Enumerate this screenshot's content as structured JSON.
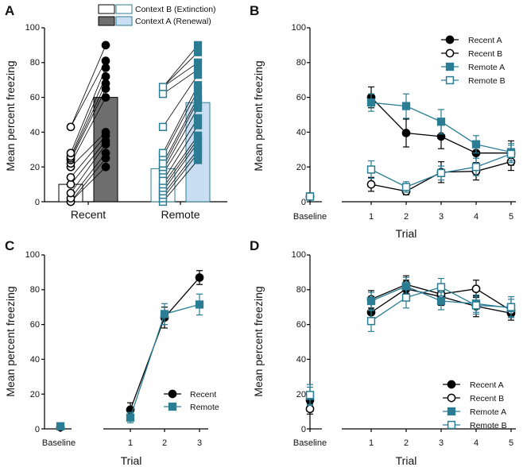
{
  "colors": {
    "black": "#000000",
    "teal": "#2b7d94",
    "gray_bar": "#6e6e6e",
    "light_bar": "#c9def2"
  },
  "chart_data": [
    {
      "panel": "A",
      "type": "bar",
      "ylabel": "Mean percent freezing",
      "ylim": [
        0,
        100
      ],
      "yticks": [
        0,
        20,
        40,
        60,
        80,
        100
      ],
      "categories": [
        "Recent",
        "Remote"
      ],
      "legend": [
        "Context B (Extinction)",
        "Context A (Renewal)"
      ],
      "series": [
        {
          "name": "Recent Context B",
          "mean": 10,
          "points": [
            0,
            0,
            2,
            5,
            10,
            14,
            20,
            22,
            24,
            25,
            26,
            28,
            43
          ]
        },
        {
          "name": "Recent Context A",
          "mean": 60,
          "points": [
            20,
            25,
            28,
            33,
            35,
            38,
            40,
            60,
            65,
            68,
            72,
            77,
            81,
            90
          ]
        },
        {
          "name": "Remote Context B",
          "mean": 19,
          "points": [
            0,
            2,
            4,
            6,
            8,
            10,
            12,
            16,
            18,
            20,
            22,
            26,
            28,
            43,
            62,
            66
          ]
        },
        {
          "name": "Remote Context A",
          "mean": 57,
          "points": [
            24,
            28,
            30,
            34,
            36,
            38,
            44,
            48,
            54,
            58,
            60,
            64,
            67,
            73,
            76,
            80,
            86,
            90
          ]
        }
      ]
    },
    {
      "panel": "B",
      "type": "line",
      "ylabel": "Mean percent freezing",
      "xlabel": "Trial",
      "ylim": [
        0,
        100
      ],
      "yticks": [
        0,
        20,
        40,
        60,
        80,
        100
      ],
      "x": [
        "Baseline",
        "1",
        "2",
        "3",
        "4",
        "5"
      ],
      "series": [
        {
          "name": "Recent A",
          "values": [
            3,
            60,
            39.5,
            37.5,
            28,
            28
          ],
          "errors": [
            2,
            6,
            8,
            7,
            7,
            7
          ]
        },
        {
          "name": "Recent B",
          "values": [
            3,
            10,
            6,
            17,
            17.5,
            23
          ],
          "errors": [
            2,
            4,
            2,
            6,
            5,
            5
          ]
        },
        {
          "name": "Remote A",
          "values": [
            3,
            57,
            55,
            46,
            33,
            28.5
          ],
          "errors": [
            2,
            5,
            7,
            7,
            5,
            5
          ]
        },
        {
          "name": "Remote B",
          "values": [
            3,
            18.5,
            8.5,
            16.5,
            20,
            27.5
          ],
          "errors": [
            2,
            5,
            3,
            4,
            5,
            5
          ]
        }
      ]
    },
    {
      "panel": "C",
      "type": "line",
      "ylabel": "Mean percent freezing",
      "xlabel": "Trial",
      "ylim": [
        0,
        100
      ],
      "yticks": [
        0,
        20,
        40,
        60,
        80,
        100
      ],
      "x": [
        "Baseline",
        "1",
        "2",
        "3"
      ],
      "series": [
        {
          "name": "Recent",
          "values": [
            1,
            11,
            64,
            87
          ],
          "errors": [
            1,
            4,
            6,
            4
          ]
        },
        {
          "name": "Remote",
          "values": [
            1.5,
            6.5,
            66,
            71.5
          ],
          "errors": [
            1,
            3,
            6,
            6
          ]
        }
      ]
    },
    {
      "panel": "D",
      "type": "line",
      "ylabel": "Mean percent freezing",
      "xlabel": "Trial",
      "ylim": [
        0,
        100
      ],
      "yticks": [
        0,
        20,
        40,
        60,
        80,
        100
      ],
      "x": [
        "Baseline",
        "1",
        "2",
        "3",
        "4",
        "5"
      ],
      "series": [
        {
          "name": "Recent A",
          "values": [
            16.5,
            67,
            80.5,
            76,
            70.5,
            66.5
          ],
          "errors": [
            4,
            5,
            5,
            5,
            6,
            4
          ]
        },
        {
          "name": "Recent B",
          "values": [
            11.5,
            74.5,
            83,
            77.5,
            80.5,
            68
          ],
          "errors": [
            3,
            5,
            5,
            5,
            5,
            4
          ]
        },
        {
          "name": "Remote A",
          "values": [
            19,
            73.5,
            82,
            73.5,
            72,
            69.5
          ],
          "errors": [
            5,
            5,
            5,
            5,
            5,
            5
          ]
        },
        {
          "name": "Remote B",
          "values": [
            19.5,
            62,
            75.5,
            81.5,
            71,
            70
          ],
          "errors": [
            6,
            6,
            6,
            5,
            5,
            6
          ]
        }
      ]
    }
  ]
}
